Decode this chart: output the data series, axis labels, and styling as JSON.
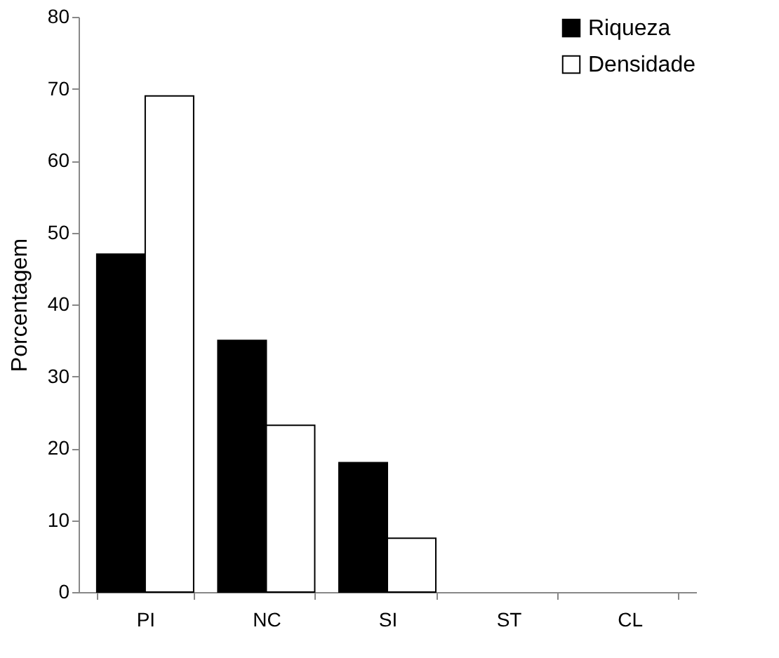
{
  "chart_data": {
    "type": "bar",
    "ylabel": "Porcentagem",
    "categories": [
      "PI",
      "NC",
      "SI",
      "ST",
      "CL"
    ],
    "series": [
      {
        "name": "Riqueza",
        "color": "#000000",
        "values": [
          47,
          35,
          18,
          0,
          0
        ]
      },
      {
        "name": "Densidade",
        "color": "#ffffff",
        "values": [
          69,
          23.2,
          7.5,
          0,
          0
        ]
      }
    ],
    "ylim": [
      0,
      80
    ],
    "yticks": [
      0,
      10,
      20,
      30,
      40,
      50,
      60,
      70,
      80
    ],
    "grid": false,
    "legend": "top right"
  }
}
